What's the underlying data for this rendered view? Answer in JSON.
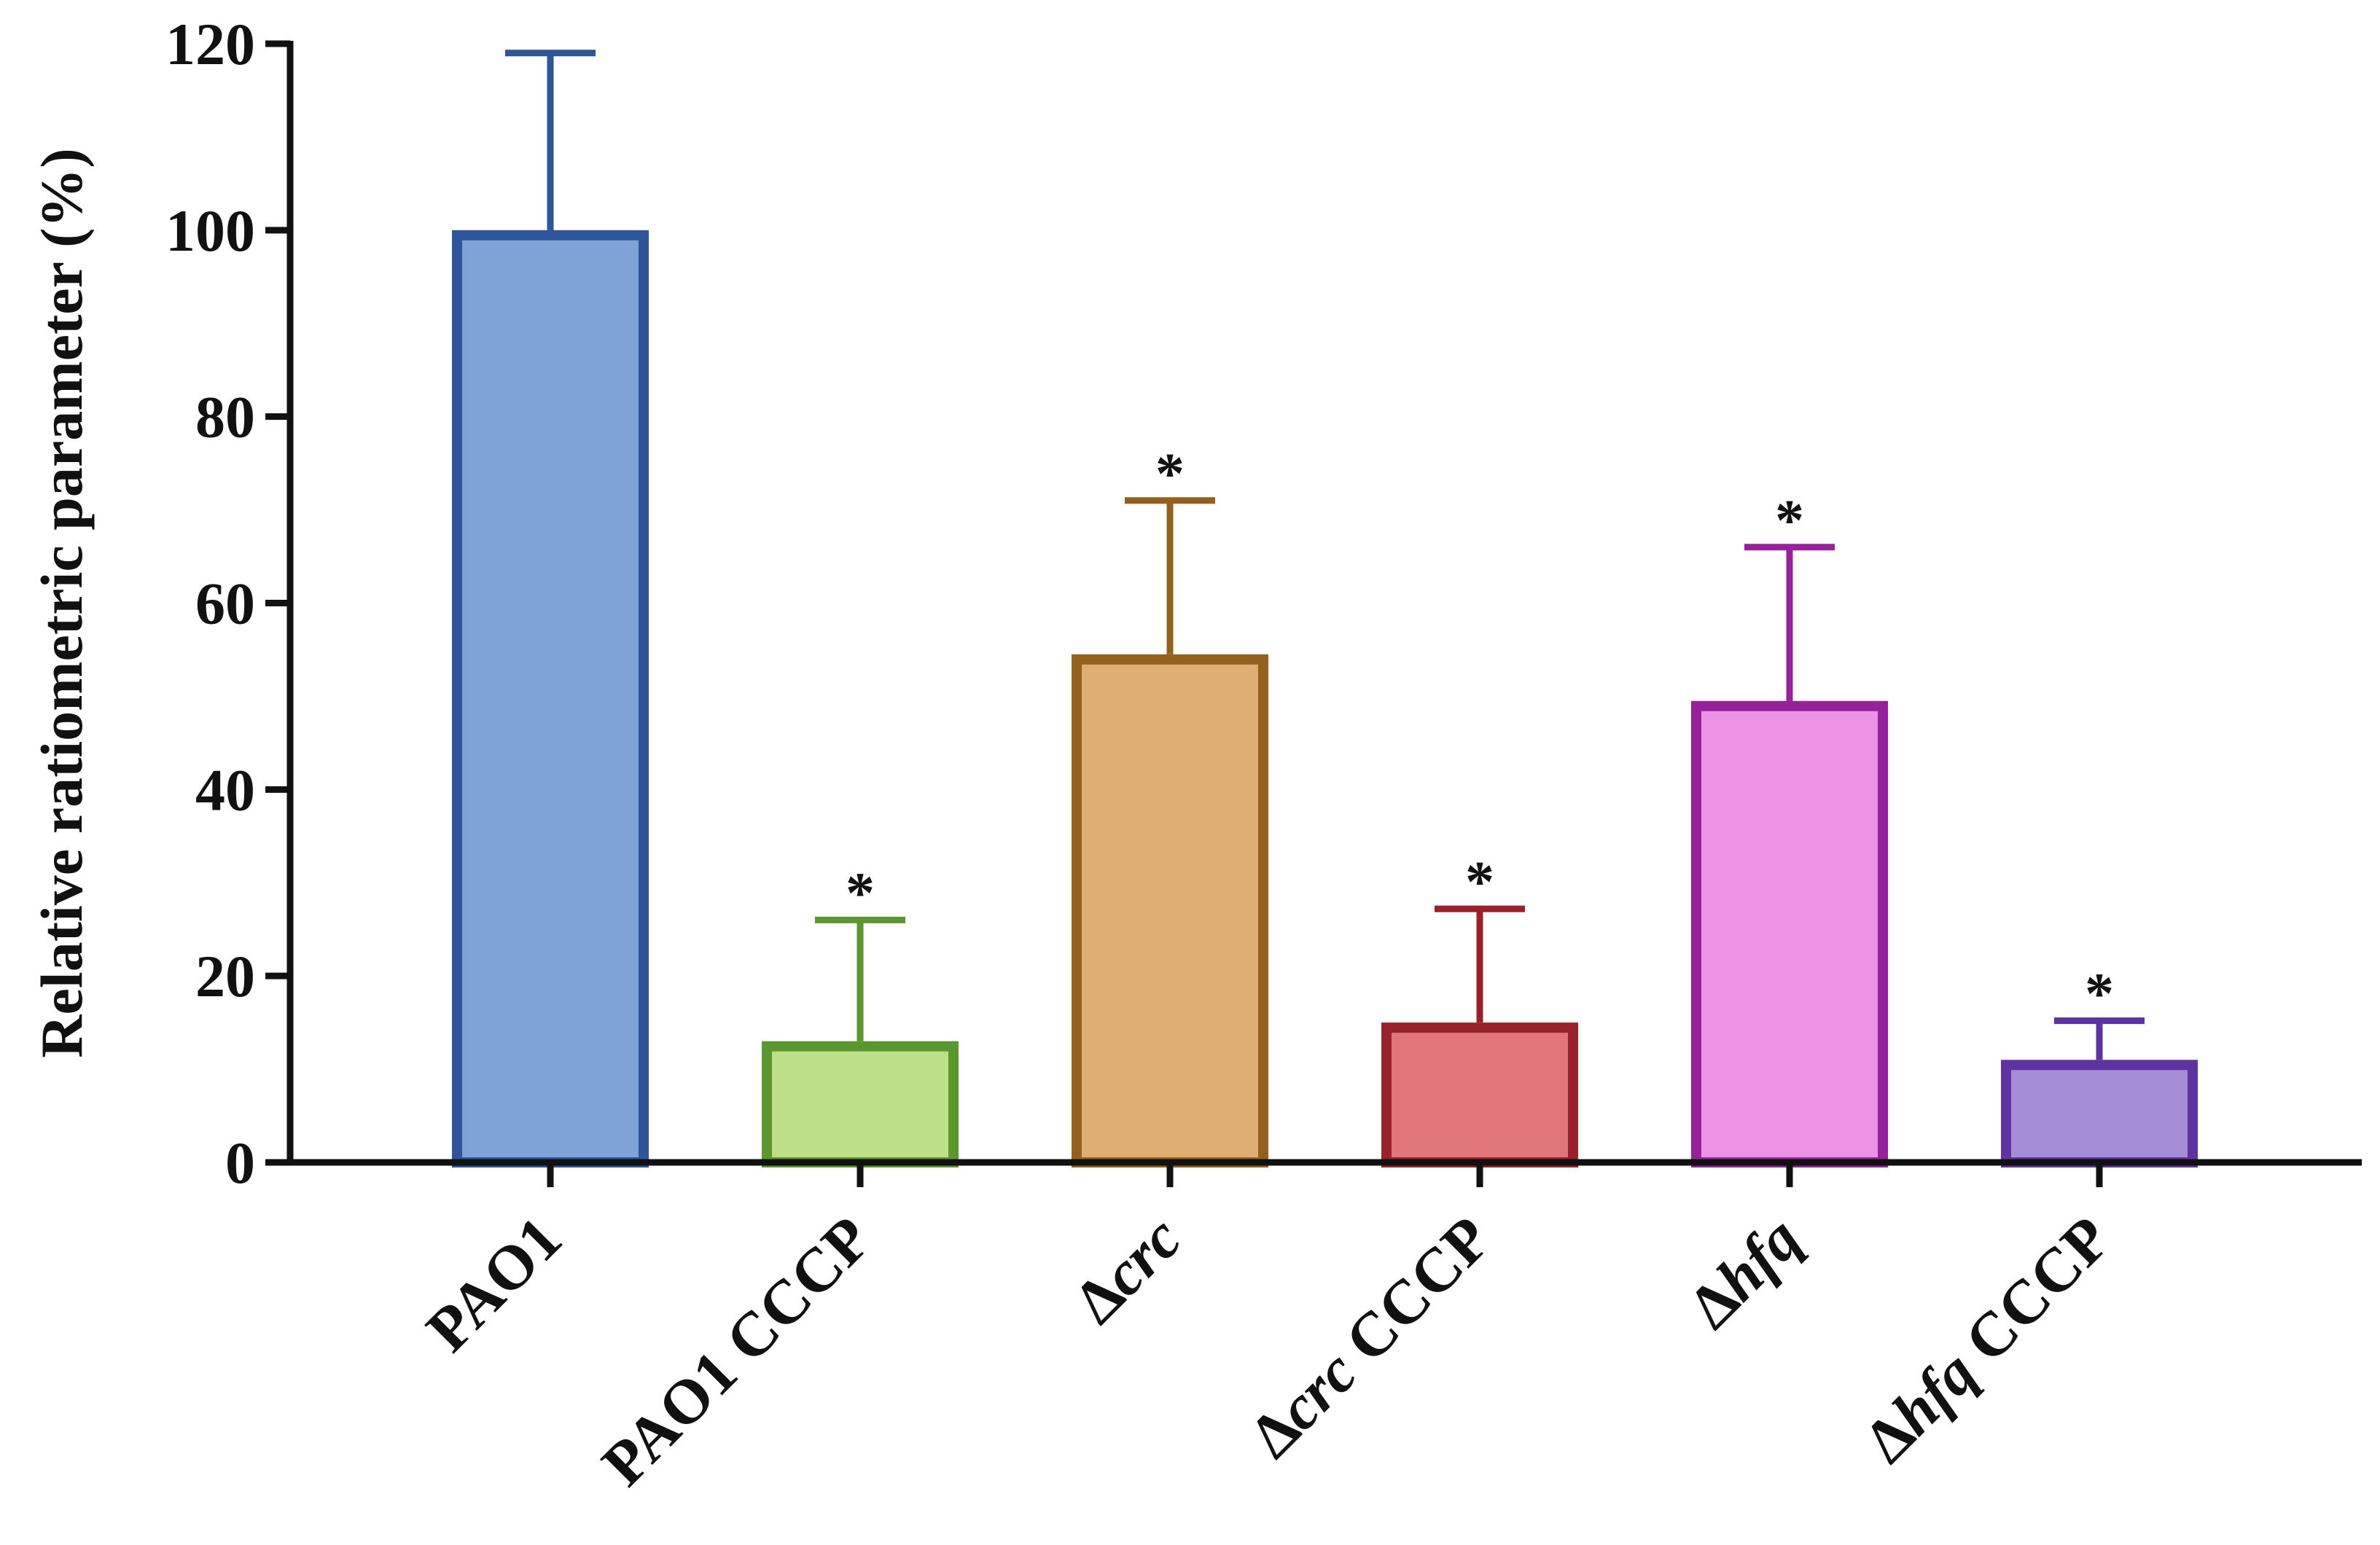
{
  "chart_data": {
    "type": "bar",
    "ylabel": "Relative ratiometric parameter (%)",
    "xlabel": "",
    "ylim": [
      0,
      120
    ],
    "yticks": [
      0,
      20,
      40,
      60,
      80,
      100,
      120
    ],
    "grid": false,
    "legend": "none",
    "categories": [
      {
        "label": [
          {
            "text": "PAO1",
            "italic": false
          }
        ]
      },
      {
        "label": [
          {
            "text": "PAO1 CCCP",
            "italic": false
          }
        ]
      },
      {
        "label": [
          {
            "text": "Δ",
            "italic": false
          },
          {
            "text": "crc",
            "italic": true
          }
        ]
      },
      {
        "label": [
          {
            "text": "Δ",
            "italic": false
          },
          {
            "text": "crc",
            "italic": true
          },
          {
            "text": " CCCP",
            "italic": false
          }
        ]
      },
      {
        "label": [
          {
            "text": "Δ",
            "italic": false
          },
          {
            "text": "hfq",
            "italic": true
          }
        ]
      },
      {
        "label": [
          {
            "text": "Δ",
            "italic": false
          },
          {
            "text": "hfq",
            "italic": true
          },
          {
            "text": " CCCP",
            "italic": false
          }
        ]
      }
    ],
    "values": [
      100,
      13,
      54.5,
      15,
      49.5,
      11
    ],
    "error_upper": [
      119,
      26,
      71,
      27.2,
      66,
      15.2
    ],
    "significance": [
      "",
      "*",
      "*",
      "*",
      "*",
      "*"
    ],
    "colors": [
      {
        "fill": "#7FA3D6",
        "stroke": "#2E5597"
      },
      {
        "fill": "#BEDF88",
        "stroke": "#5A972F"
      },
      {
        "fill": "#DEAE72",
        "stroke": "#94601D"
      },
      {
        "fill": "#E0767A",
        "stroke": "#98212A"
      },
      {
        "fill": "#EB94E6",
        "stroke": "#97219B"
      },
      {
        "fill": "#A58CD6",
        "stroke": "#5D33A1"
      }
    ]
  }
}
